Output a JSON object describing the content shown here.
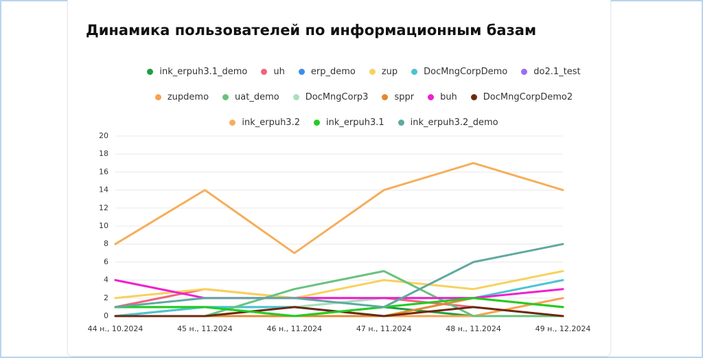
{
  "chart_data": {
    "type": "line",
    "title": "Динамика пользователей по информационным базам",
    "categories": [
      "44 н., 10.2024",
      "45 н., 11.2024",
      "46 н., 11.2024",
      "47 н., 11.2024",
      "48 н., 11.2024",
      "49 н., 12.2024"
    ],
    "ylim": [
      0,
      20
    ],
    "yticks": [
      0,
      2,
      4,
      6,
      8,
      10,
      12,
      14,
      16,
      18,
      20
    ],
    "grid": true,
    "series": [
      {
        "name": "ink_erpuh3.1_demo",
        "color": "#1f9d45",
        "values": [
          1,
          1,
          0,
          1,
          0,
          0
        ]
      },
      {
        "name": "uh",
        "color": "#f0647e",
        "values": [
          1,
          3,
          2,
          2,
          1,
          0
        ]
      },
      {
        "name": "erp_demo",
        "color": "#3a8ee6",
        "values": [
          0,
          1,
          1,
          0,
          0,
          0
        ]
      },
      {
        "name": "zup",
        "color": "#f7d25c",
        "values": [
          2,
          3,
          2,
          4,
          3,
          5
        ]
      },
      {
        "name": "DocMngCorpDemo",
        "color": "#4cc4cf",
        "values": [
          0,
          1,
          1,
          2,
          2,
          4
        ]
      },
      {
        "name": "do2.1_test",
        "color": "#9b6cf0",
        "values": [
          0,
          0,
          0,
          0,
          0,
          0
        ]
      },
      {
        "name": "zupdemo",
        "color": "#f7a24e",
        "values": [
          0,
          0,
          0,
          0,
          0,
          2
        ]
      },
      {
        "name": "uat_demo",
        "color": "#68c27e",
        "values": [
          0,
          0,
          3,
          5,
          0,
          0
        ]
      },
      {
        "name": "DocMngCorp3",
        "color": "#a9e0bb",
        "values": [
          0,
          0,
          1,
          2,
          2,
          1
        ]
      },
      {
        "name": "sppr",
        "color": "#e08a30",
        "values": [
          0,
          0,
          0,
          0,
          2,
          1
        ]
      },
      {
        "name": "buh",
        "color": "#f01fce",
        "values": [
          4,
          2,
          2,
          2,
          2,
          3
        ]
      },
      {
        "name": "DocMngCorpDemo2",
        "color": "#6b2a10",
        "values": [
          0,
          0,
          1,
          0,
          1,
          0
        ]
      },
      {
        "name": "ink_erpuh3.2",
        "color": "#f6ae5a",
        "values": [
          8,
          14,
          7,
          14,
          17,
          14
        ]
      },
      {
        "name": "ink_erpuh3.1",
        "color": "#22cc22",
        "values": [
          1,
          1,
          0,
          1,
          2,
          1
        ]
      },
      {
        "name": "ink_erpuh3.2_demo",
        "color": "#5fa9a1",
        "values": [
          1,
          2,
          2,
          1,
          6,
          8
        ]
      }
    ]
  }
}
